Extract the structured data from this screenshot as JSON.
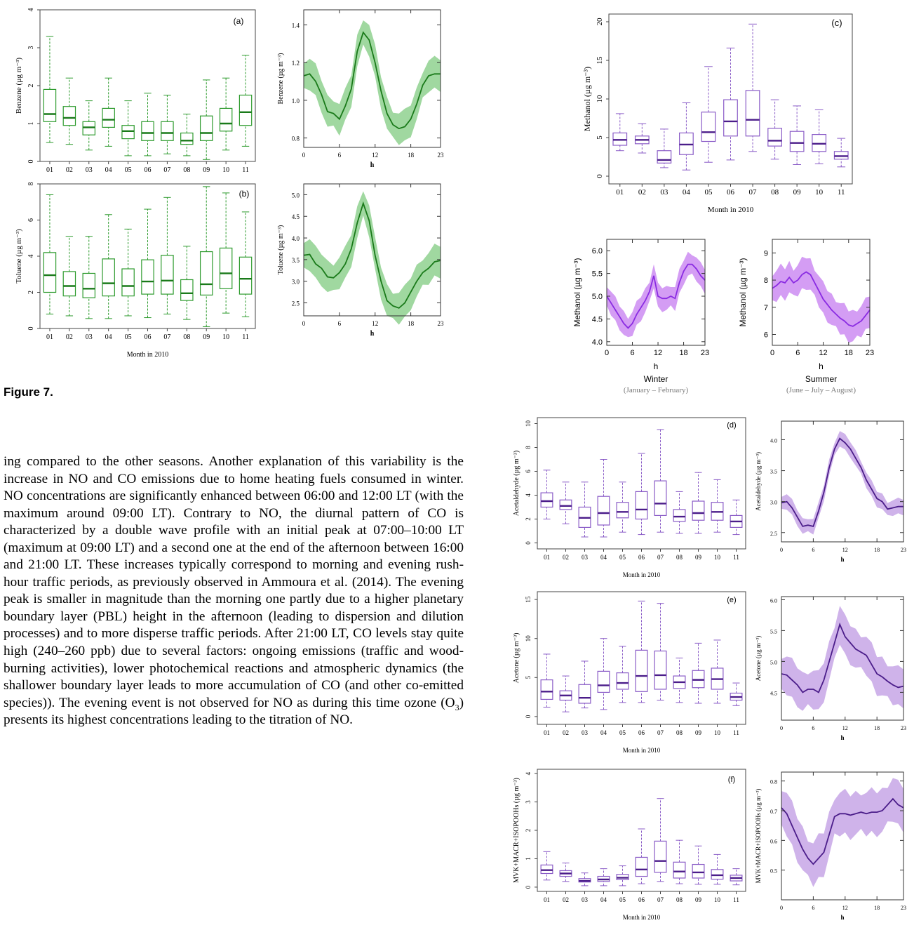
{
  "figure": {
    "caption": "Figure 7."
  },
  "months": [
    "01",
    "02",
    "03",
    "04",
    "05",
    "06",
    "07",
    "08",
    "09",
    "10",
    "11"
  ],
  "month_axis_label": "Month in 2010",
  "hour_axis_label": "h",
  "colors": {
    "green_line": "#1a7a1a",
    "green_fill": "#8fd18f",
    "green_box": "#2e9b2e",
    "purple_line": "#4b1d8a",
    "purple_fill": "#c7a6e6",
    "purple_box": "#8a5cc7",
    "purple_bright_fill": "#cc8cf2",
    "purple_bright_line": "#8a2be2"
  },
  "body_text": {
    "paragraph_before": "ing compared to the other seasons. Another explanation of this variability is the increase in NO and CO emissions due to home heating fuels consumed in winter. NO concentrations are significantly enhanced between 06:00 and 12:00 LT (with the maximum around 09:00 LT). Contrary to NO, the diurnal pattern of CO is characterized by a double wave profile with an initial peak at 07:00–10:00 LT (maximum at 09:00 LT) and a second one at the end of the afternoon between 16:00 and 21:00 LT. These increases typically correspond to morning and evening rush-hour traffic periods, as previously observed in Ammoura et al. (2014). The evening peak is smaller in magnitude than the morning one partly due to a higher planetary boundary layer (PBL) height in the afternoon (leading to dispersion and dilution processes) and to more disperse traffic periods. After 21:00 LT, CO levels stay quite high (240–260 ppb) due to several factors: ongoing emissions (traffic and wood-burning activities), lower photochemical reactions and atmospheric dynamics (the shallower boundary layer leads to more accumulation of CO (and other co-emitted species)). The evening event is not observed for NO as during this time ozone (O",
    "o3_sub": "3",
    "paragraph_after": ") presents its highest concentrations leading to the titration of NO."
  },
  "chart_data": [
    {
      "panel": "a-box",
      "type": "box",
      "tag": "(a)",
      "ylabel": "Benzene (µg m⁻³)",
      "xlabel": "",
      "ylim": [
        0,
        4
      ],
      "yticks": [
        0,
        1,
        2,
        3,
        4
      ],
      "boxes": [
        [
          0.5,
          1.05,
          1.25,
          1.9,
          3.3
        ],
        [
          0.45,
          0.95,
          1.15,
          1.45,
          2.2
        ],
        [
          0.3,
          0.7,
          0.9,
          1.05,
          1.6
        ],
        [
          0.4,
          0.9,
          1.1,
          1.4,
          2.2
        ],
        [
          0.15,
          0.6,
          0.8,
          0.95,
          1.6
        ],
        [
          0.15,
          0.55,
          0.75,
          1.05,
          1.8
        ],
        [
          0.2,
          0.55,
          0.75,
          1.05,
          1.75
        ],
        [
          0.15,
          0.45,
          0.55,
          0.75,
          1.25
        ],
        [
          0.05,
          0.55,
          0.75,
          1.2,
          2.15
        ],
        [
          0.3,
          0.8,
          1.0,
          1.4,
          2.2
        ],
        [
          0.4,
          0.95,
          1.3,
          1.75,
          2.8
        ]
      ]
    },
    {
      "panel": "a-diurnal",
      "type": "area",
      "ylabel": "Benzene (µg m⁻³)",
      "xlabel": "h",
      "xlim": [
        0,
        23
      ],
      "ylim": [
        0.75,
        1.48
      ],
      "yticks": [
        0.8,
        1.0,
        1.2,
        1.4
      ],
      "xticks": [
        0,
        6,
        12,
        18,
        23
      ],
      "mean": [
        1.13,
        1.14,
        1.1,
        1.03,
        0.94,
        0.93,
        0.9,
        0.97,
        1.06,
        1.26,
        1.36,
        1.32,
        1.2,
        1.05,
        0.93,
        0.87,
        0.85,
        0.86,
        0.9,
        0.98,
        1.08,
        1.13,
        1.14,
        1.14
      ],
      "band": 0.08
    },
    {
      "panel": "b-box",
      "type": "box",
      "tag": "(b)",
      "ylabel": "Toluene (µg m⁻³)",
      "xlabel": "Month in 2010",
      "ylim": [
        0,
        8
      ],
      "yticks": [
        0,
        2,
        4,
        6,
        8
      ],
      "boxes": [
        [
          0.8,
          2.0,
          2.95,
          4.2,
          7.4
        ],
        [
          0.7,
          1.8,
          2.35,
          3.15,
          5.1
        ],
        [
          0.55,
          1.7,
          2.2,
          3.05,
          5.1
        ],
        [
          0.55,
          1.8,
          2.5,
          3.85,
          6.3
        ],
        [
          0.7,
          1.8,
          2.35,
          3.3,
          5.5
        ],
        [
          0.6,
          1.9,
          2.6,
          3.8,
          6.6
        ],
        [
          0.8,
          1.9,
          2.65,
          4.05,
          7.25
        ],
        [
          0.5,
          1.55,
          1.95,
          2.7,
          4.55
        ],
        [
          0.1,
          1.85,
          2.45,
          4.25,
          7.85
        ],
        [
          0.85,
          2.2,
          3.05,
          4.45,
          7.5
        ],
        [
          0.65,
          1.9,
          2.75,
          3.95,
          6.45
        ]
      ]
    },
    {
      "panel": "b-diurnal",
      "type": "area",
      "ylabel": "Toluene (µg m⁻³)",
      "xlabel": "h",
      "xlim": [
        0,
        23
      ],
      "ylim": [
        2.2,
        5.25
      ],
      "yticks": [
        2.5,
        3.0,
        3.5,
        4.0,
        4.5,
        5.0
      ],
      "xticks": [
        0,
        6,
        12,
        18,
        23
      ],
      "mean": [
        3.6,
        3.62,
        3.4,
        3.3,
        3.1,
        3.08,
        3.2,
        3.4,
        3.75,
        4.35,
        4.8,
        4.4,
        3.6,
        3.0,
        2.55,
        2.43,
        2.38,
        2.5,
        2.75,
        3.0,
        3.2,
        3.3,
        3.45,
        3.48
      ],
      "band": 0.35
    },
    {
      "panel": "c-box",
      "type": "box",
      "tag": "(c)",
      "ylabel": "Methanol (µg m⁻³)",
      "xlabel": "Month in 2010",
      "ylim": [
        -1,
        21
      ],
      "yticks": [
        0,
        5,
        10,
        15,
        20
      ],
      "boxes": [
        [
          3.3,
          4.0,
          4.7,
          5.6,
          8.1
        ],
        [
          3.0,
          4.2,
          4.7,
          5.2,
          6.8
        ],
        [
          1.1,
          1.7,
          2.1,
          3.3,
          6.1
        ],
        [
          0.8,
          2.8,
          4.1,
          5.6,
          9.5
        ],
        [
          1.8,
          4.5,
          5.7,
          8.3,
          14.2
        ],
        [
          2.1,
          5.2,
          7.1,
          9.9,
          16.6
        ],
        [
          3.2,
          5.2,
          7.3,
          11.1,
          19.7
        ],
        [
          2.2,
          3.9,
          4.6,
          6.2,
          9.9
        ],
        [
          1.5,
          3.2,
          4.3,
          5.8,
          9.1
        ],
        [
          1.6,
          3.2,
          4.2,
          5.4,
          8.6
        ],
        [
          1.2,
          2.2,
          2.6,
          3.2,
          4.9
        ]
      ]
    },
    {
      "panel": "c-winter",
      "type": "area",
      "ylabel": "Methanol (µg m⁻³)",
      "xlabel": "h",
      "title": "Winter",
      "subtitle": "(January – February)",
      "xlim": [
        0,
        23
      ],
      "ylim": [
        3.92,
        6.25
      ],
      "yticks": [
        4.0,
        4.5,
        5.0,
        5.5,
        6.0
      ],
      "xticks": [
        0,
        6,
        12,
        18,
        23
      ],
      "mean": [
        5.0,
        4.85,
        4.7,
        4.55,
        4.4,
        4.3,
        4.4,
        4.6,
        4.75,
        4.9,
        5.1,
        5.45,
        5.0,
        4.95,
        4.95,
        5.0,
        4.95,
        5.3,
        5.55,
        5.7,
        5.7,
        5.6,
        5.45,
        5.35
      ],
      "band": 0.25
    },
    {
      "panel": "c-summer",
      "type": "area",
      "ylabel": "Methanol (µg m⁻³)",
      "xlabel": "h",
      "title": "Summer",
      "subtitle": "(June – July – August)",
      "xlim": [
        0,
        23
      ],
      "ylim": [
        5.6,
        9.5
      ],
      "yticks": [
        6,
        7,
        8,
        9
      ],
      "xticks": [
        0,
        6,
        12,
        18,
        23
      ],
      "mean": [
        7.7,
        7.8,
        7.95,
        7.9,
        8.1,
        7.9,
        8.0,
        8.2,
        8.3,
        8.2,
        7.9,
        7.6,
        7.3,
        7.1,
        6.9,
        6.75,
        6.6,
        6.5,
        6.35,
        6.3,
        6.4,
        6.5,
        6.7,
        6.9
      ],
      "band": 0.55
    },
    {
      "panel": "d-box",
      "type": "box",
      "tag": "(d)",
      "ylabel": "Acetaldehyde (µg m⁻³)",
      "xlabel": "Month in 2010",
      "ylim": [
        -0.5,
        10.5
      ],
      "yticks": [
        0,
        2,
        4,
        6,
        8,
        10
      ],
      "boxes": [
        [
          2.0,
          3.0,
          3.5,
          4.2,
          6.1
        ],
        [
          1.6,
          2.8,
          3.1,
          3.6,
          5.1
        ],
        [
          0.5,
          1.3,
          2.1,
          3.0,
          5.1
        ],
        [
          0.5,
          1.5,
          2.5,
          3.9,
          7.0
        ],
        [
          0.9,
          2.1,
          2.6,
          3.4,
          5.1
        ],
        [
          0.7,
          2.0,
          2.8,
          4.3,
          7.5
        ],
        [
          0.9,
          2.3,
          3.3,
          5.2,
          9.5
        ],
        [
          0.8,
          1.8,
          2.2,
          2.8,
          4.3
        ],
        [
          0.8,
          1.9,
          2.5,
          3.5,
          5.9
        ],
        [
          0.9,
          1.9,
          2.6,
          3.4,
          5.3
        ],
        [
          0.7,
          1.3,
          1.8,
          2.3,
          3.6
        ]
      ]
    },
    {
      "panel": "d-diurnal",
      "type": "area",
      "ylabel": "Acetaldehyde (µg m⁻³)",
      "xlabel": "h",
      "xlim": [
        0,
        23
      ],
      "ylim": [
        2.35,
        4.3
      ],
      "yticks": [
        2.5,
        3.0,
        3.5,
        4.0
      ],
      "xticks": [
        0,
        6,
        12,
        18,
        23
      ],
      "mean": [
        2.98,
        3.0,
        2.9,
        2.75,
        2.6,
        2.62,
        2.6,
        2.85,
        3.15,
        3.55,
        3.85,
        4.02,
        3.95,
        3.85,
        3.7,
        3.55,
        3.35,
        3.2,
        3.05,
        3.0,
        2.88,
        2.9,
        2.92,
        2.92
      ],
      "band": 0.12
    },
    {
      "panel": "e-box",
      "type": "box",
      "tag": "(e)",
      "ylabel": "Acetone (µg m⁻³)",
      "xlabel": "Month in 2010",
      "ylim": [
        -1,
        16
      ],
      "yticks": [
        0,
        5,
        10,
        15
      ],
      "boxes": [
        [
          1.2,
          2.2,
          3.2,
          4.7,
          8.0
        ],
        [
          0.6,
          2.1,
          2.7,
          3.3,
          5.2
        ],
        [
          1.1,
          1.7,
          2.4,
          4.1,
          7.1
        ],
        [
          0.9,
          3.1,
          4.0,
          5.8,
          10.0
        ],
        [
          1.8,
          3.5,
          4.3,
          5.6,
          9.0
        ],
        [
          1.8,
          3.2,
          5.2,
          8.5,
          14.8
        ],
        [
          2.1,
          3.5,
          5.3,
          8.4,
          14.5
        ],
        [
          1.8,
          3.6,
          4.4,
          5.2,
          7.5
        ],
        [
          1.7,
          3.7,
          4.7,
          5.9,
          9.4
        ],
        [
          1.7,
          3.5,
          4.8,
          6.2,
          9.8
        ],
        [
          1.4,
          2.1,
          2.5,
          3.0,
          4.3
        ]
      ]
    },
    {
      "panel": "e-diurnal",
      "type": "area",
      "ylabel": "Acetone (µg m⁻³)",
      "xlabel": "h",
      "xlim": [
        0,
        23
      ],
      "ylim": [
        4.05,
        6.05
      ],
      "yticks": [
        4.5,
        5.0,
        5.5,
        6.0
      ],
      "xticks": [
        0,
        6,
        12,
        18,
        23
      ],
      "mean": [
        4.8,
        4.78,
        4.7,
        4.62,
        4.5,
        4.55,
        4.55,
        4.5,
        4.7,
        5.0,
        5.3,
        5.6,
        5.4,
        5.3,
        5.2,
        5.15,
        5.1,
        4.95,
        4.8,
        4.75,
        4.68,
        4.62,
        4.58,
        4.6
      ],
      "band": 0.3
    },
    {
      "panel": "f-box",
      "type": "box",
      "tag": "(f)",
      "ylabel": "MVK+MACR+ISOPOOHs (µg m⁻³)",
      "xlabel": "Month in 2010",
      "ylim": [
        -0.15,
        4.15
      ],
      "yticks": [
        0,
        1,
        2,
        3,
        4
      ],
      "boxes": [
        [
          0.25,
          0.48,
          0.6,
          0.78,
          1.25
        ],
        [
          0.2,
          0.38,
          0.48,
          0.58,
          0.85
        ],
        [
          0.05,
          0.18,
          0.22,
          0.3,
          0.5
        ],
        [
          0.05,
          0.2,
          0.27,
          0.38,
          0.65
        ],
        [
          0.05,
          0.26,
          0.33,
          0.45,
          0.75
        ],
        [
          0.12,
          0.38,
          0.62,
          1.05,
          2.05
        ],
        [
          0.2,
          0.52,
          0.92,
          1.62,
          3.12
        ],
        [
          0.12,
          0.32,
          0.55,
          0.88,
          1.65
        ],
        [
          0.1,
          0.32,
          0.52,
          0.8,
          1.45
        ],
        [
          0.1,
          0.28,
          0.42,
          0.62,
          1.15
        ],
        [
          0.08,
          0.22,
          0.32,
          0.42,
          0.65
        ]
      ]
    },
    {
      "panel": "f-diurnal",
      "type": "area",
      "ylabel": "MVK+MACR+ISOPOOHs (µg m⁻³)",
      "xlabel": "h",
      "xlim": [
        0,
        23
      ],
      "ylim": [
        0.4,
        0.83
      ],
      "yticks": [
        0.5,
        0.6,
        0.7,
        0.8
      ],
      "xticks": [
        0,
        6,
        12,
        18,
        23
      ],
      "mean": [
        0.71,
        0.69,
        0.65,
        0.61,
        0.57,
        0.54,
        0.52,
        0.54,
        0.56,
        0.62,
        0.68,
        0.69,
        0.69,
        0.685,
        0.69,
        0.695,
        0.69,
        0.695,
        0.695,
        0.7,
        0.72,
        0.74,
        0.72,
        0.71
      ],
      "band": 0.07
    }
  ]
}
